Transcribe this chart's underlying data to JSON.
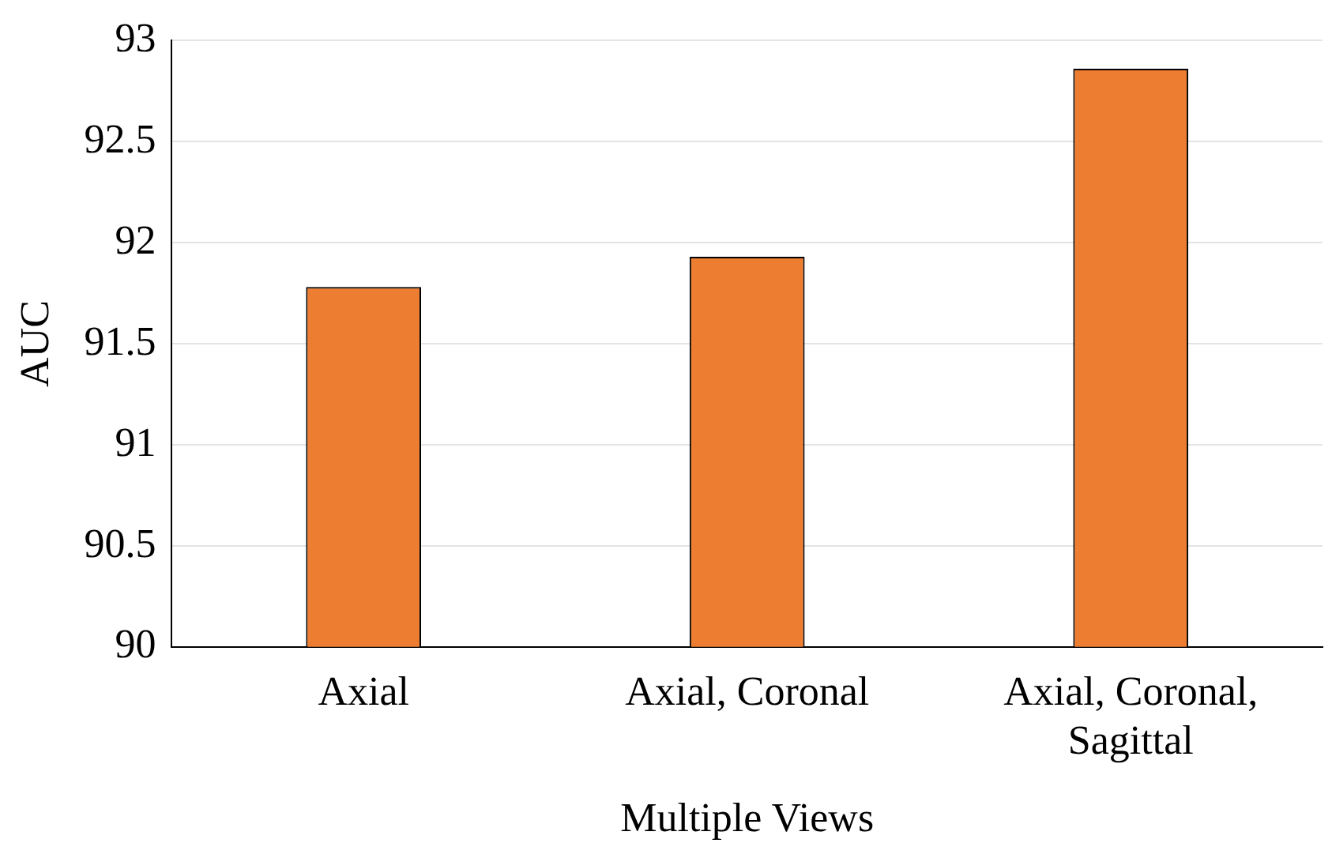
{
  "chart_data": {
    "type": "bar",
    "xlabel": "Multiple Views",
    "ylabel": "AUC",
    "categories": [
      "Axial",
      "Axial, Coronal",
      "Axial, Coronal, Sagittal"
    ],
    "values": [
      91.78,
      91.93,
      92.86
    ],
    "color": "#ed7d31",
    "ylim": [
      90,
      93
    ],
    "yticks": [
      90,
      90.5,
      91,
      91.5,
      92,
      92.5,
      93
    ],
    "grid": "y",
    "legend": false
  }
}
